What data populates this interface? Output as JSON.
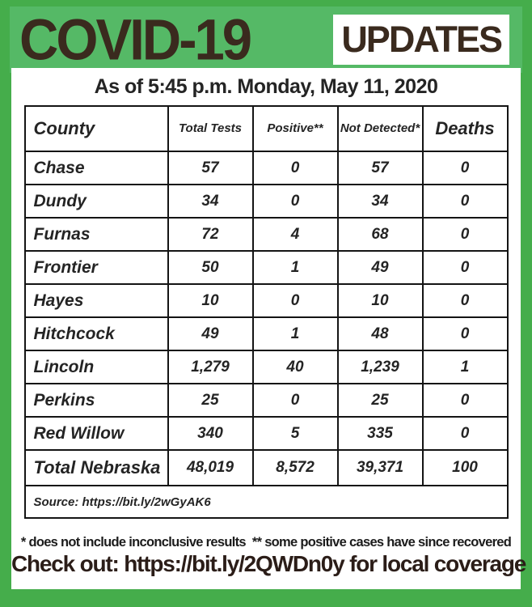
{
  "colors": {
    "frame_green": "#45ad4b",
    "panel_green": "#55b966",
    "title_brown": "#3a2a1e",
    "badge_background": "#ffffff",
    "table_ink": "#242424",
    "border_black": "#141414"
  },
  "header": {
    "title": "COVID-19",
    "badge": "UPDATES"
  },
  "subtitle": "As of 5:45 p.m. Monday, May 11, 2020",
  "table": {
    "columns": [
      "County",
      "Total Tests",
      "Positive**",
      "Not Detected*",
      "Deaths"
    ],
    "rows": [
      {
        "county": "Chase",
        "total_tests": "57",
        "positive": "0",
        "not_detected": "57",
        "deaths": "0"
      },
      {
        "county": "Dundy",
        "total_tests": "34",
        "positive": "0",
        "not_detected": "34",
        "deaths": "0"
      },
      {
        "county": "Furnas",
        "total_tests": "72",
        "positive": "4",
        "not_detected": "68",
        "deaths": "0"
      },
      {
        "county": "Frontier",
        "total_tests": "50",
        "positive": "1",
        "not_detected": "49",
        "deaths": "0"
      },
      {
        "county": "Hayes",
        "total_tests": "10",
        "positive": "0",
        "not_detected": "10",
        "deaths": "0"
      },
      {
        "county": "Hitchcock",
        "total_tests": "49",
        "positive": "1",
        "not_detected": "48",
        "deaths": "0"
      },
      {
        "county": "Lincoln",
        "total_tests": "1,279",
        "positive": "40",
        "not_detected": "1,239",
        "deaths": "1"
      },
      {
        "county": "Perkins",
        "total_tests": "25",
        "positive": "0",
        "not_detected": "25",
        "deaths": "0"
      },
      {
        "county": "Red Willow",
        "total_tests": "340",
        "positive": "5",
        "not_detected": "335",
        "deaths": "0"
      }
    ],
    "total_row": {
      "county": "Total Nebraska",
      "total_tests": "48,019",
      "positive": "8,572",
      "not_detected": "39,371",
      "deaths": "100"
    },
    "source": "Source: https://bit.ly/2wGyAK6"
  },
  "footer": {
    "note1": "* does not include inconclusive results",
    "note2": "** some positive cases have since recovered",
    "checkout": "Check out: https://bit.ly/2QWDn0y  for local coverage"
  },
  "chart_data": {
    "type": "table",
    "title": "COVID-19 UPDATES",
    "subtitle": "As of 5:45 p.m. Monday, May 11, 2020",
    "columns": [
      "County",
      "Total Tests",
      "Positive**",
      "Not Detected*",
      "Deaths"
    ],
    "rows": [
      [
        "Chase",
        57,
        0,
        57,
        0
      ],
      [
        "Dundy",
        34,
        0,
        34,
        0
      ],
      [
        "Furnas",
        72,
        4,
        68,
        0
      ],
      [
        "Frontier",
        50,
        1,
        49,
        0
      ],
      [
        "Hayes",
        10,
        0,
        10,
        0
      ],
      [
        "Hitchcock",
        49,
        1,
        48,
        0
      ],
      [
        "Lincoln",
        1279,
        40,
        1239,
        1
      ],
      [
        "Perkins",
        25,
        0,
        25,
        0
      ],
      [
        "Red Willow",
        340,
        5,
        335,
        0
      ],
      [
        "Total Nebraska",
        48019,
        8572,
        39371,
        100
      ]
    ],
    "source": "https://bit.ly/2wGyAK6",
    "footnotes": [
      "* does not include inconclusive results",
      "** some positive cases have since recovered"
    ],
    "coverage_link": "https://bit.ly/2QWDn0y"
  }
}
